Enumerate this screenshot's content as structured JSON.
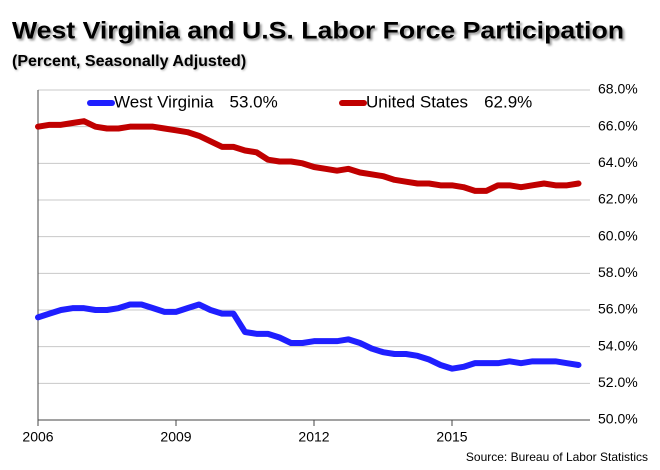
{
  "chart_data": {
    "type": "line",
    "title": "West Virginia and U.S. Labor Force Participation",
    "subtitle": "(Percent, Seasonally Adjusted)",
    "source": "Source: Bureau of Labor Statistics",
    "x": [
      2006,
      2006.25,
      2006.5,
      2006.75,
      2007,
      2007.25,
      2007.5,
      2007.75,
      2008,
      2008.25,
      2008.5,
      2008.75,
      2009,
      2009.25,
      2009.5,
      2009.75,
      2010,
      2010.25,
      2010.5,
      2010.75,
      2011,
      2011.25,
      2011.5,
      2011.75,
      2012,
      2012.25,
      2012.5,
      2012.75,
      2013,
      2013.25,
      2013.5,
      2013.75,
      2014,
      2014.25,
      2014.5,
      2014.75,
      2015,
      2015.25,
      2015.5,
      2015.75,
      2016,
      2016.25,
      2016.5,
      2016.75,
      2017,
      2017.25,
      2017.5,
      2017.75
    ],
    "series": [
      {
        "name": "West Virginia",
        "legend_value": "53.0%",
        "color": "#1f1fff",
        "values": [
          55.6,
          55.8,
          56.0,
          56.1,
          56.1,
          56.0,
          56.0,
          56.1,
          56.3,
          56.3,
          56.1,
          55.9,
          55.9,
          56.1,
          56.3,
          56.0,
          55.8,
          55.8,
          54.8,
          54.7,
          54.7,
          54.5,
          54.2,
          54.2,
          54.3,
          54.3,
          54.3,
          54.4,
          54.2,
          53.9,
          53.7,
          53.6,
          53.6,
          53.5,
          53.3,
          53.0,
          52.8,
          52.9,
          53.1,
          53.1,
          53.1,
          53.2,
          53.1,
          53.2,
          53.2,
          53.2,
          53.1,
          53.0
        ]
      },
      {
        "name": "United States",
        "legend_value": "62.9%",
        "color": "#c00000",
        "values": [
          66.0,
          66.1,
          66.1,
          66.2,
          66.3,
          66.0,
          65.9,
          65.9,
          66.0,
          66.0,
          66.0,
          65.9,
          65.8,
          65.7,
          65.5,
          65.2,
          64.9,
          64.9,
          64.7,
          64.6,
          64.2,
          64.1,
          64.1,
          64.0,
          63.8,
          63.7,
          63.6,
          63.7,
          63.5,
          63.4,
          63.3,
          63.1,
          63.0,
          62.9,
          62.9,
          62.8,
          62.8,
          62.7,
          62.5,
          62.5,
          62.8,
          62.8,
          62.7,
          62.8,
          62.9,
          62.8,
          62.8,
          62.9
        ]
      }
    ],
    "xlim": [
      2006,
      2018
    ],
    "xticks": [
      2006,
      2009,
      2012,
      2015
    ],
    "ylim": [
      50,
      68
    ],
    "yticks": [
      {
        "value": 50,
        "label": "50.0%"
      },
      {
        "value": 52,
        "label": "52.0%"
      },
      {
        "value": 54,
        "label": "54.0%"
      },
      {
        "value": 56,
        "label": "56.0%"
      },
      {
        "value": 58,
        "label": "58.0%"
      },
      {
        "value": 60,
        "label": "60.0%"
      },
      {
        "value": 62,
        "label": "62.0%"
      },
      {
        "value": 64,
        "label": "64.0%"
      },
      {
        "value": 66,
        "label": "66.0%"
      },
      {
        "value": 68,
        "label": "68.0%"
      }
    ],
    "grid": true
  }
}
